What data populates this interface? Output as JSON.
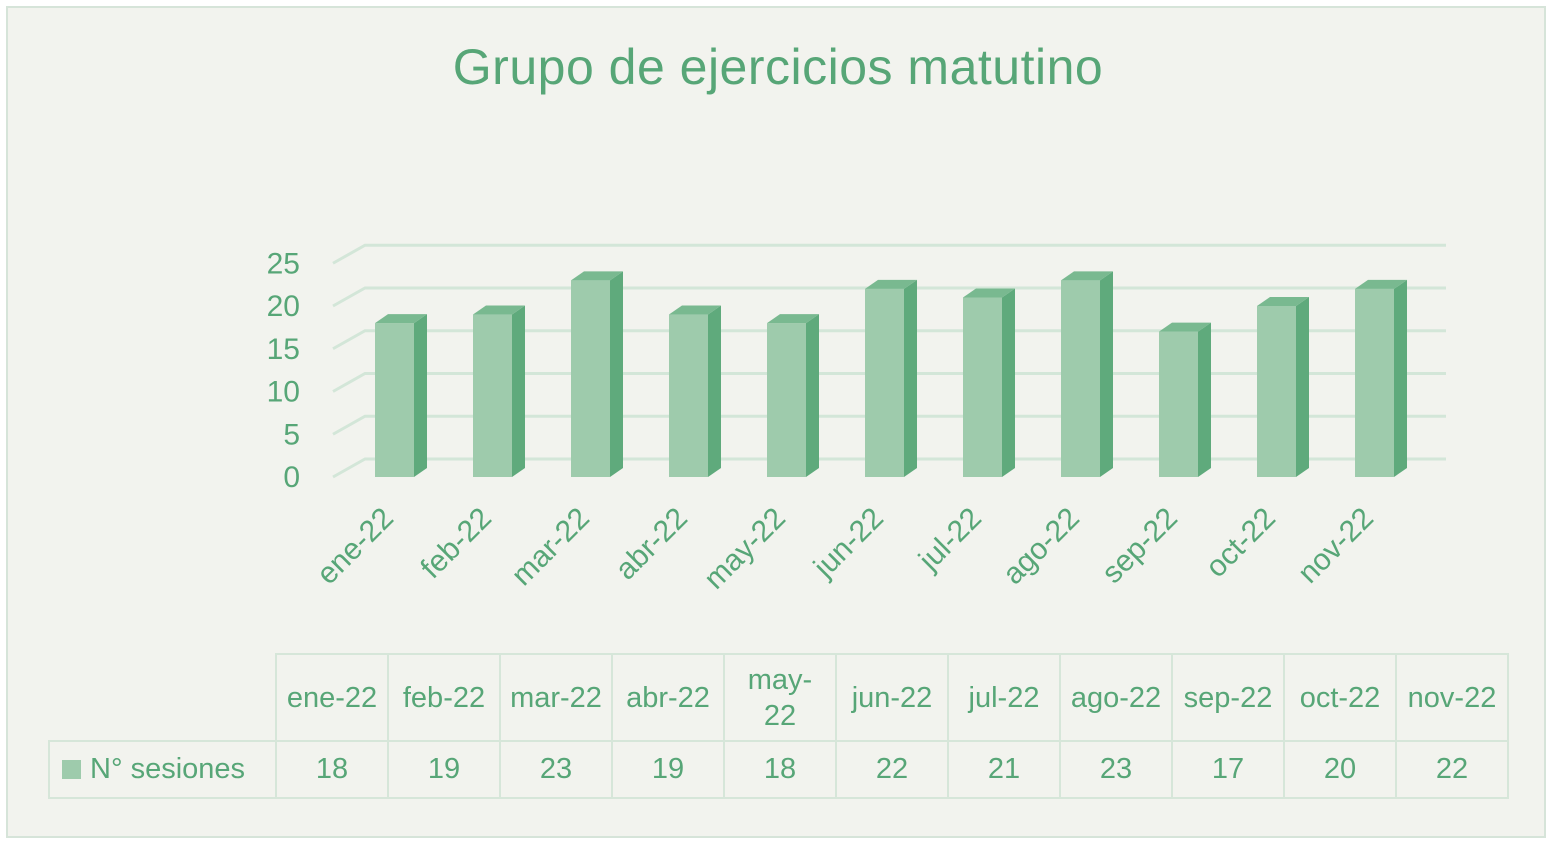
{
  "chart_data": {
    "type": "bar",
    "title": "Grupo de ejercicios matutino",
    "categories": [
      "ene-22",
      "feb-22",
      "mar-22",
      "abr-22",
      "may-22",
      "jun-22",
      "jul-22",
      "ago-22",
      "sep-22",
      "oct-22",
      "nov-22"
    ],
    "series": [
      {
        "name": "N° sesiones",
        "values": [
          18,
          19,
          23,
          19,
          18,
          22,
          21,
          23,
          17,
          20,
          22
        ]
      }
    ],
    "yticks": [
      "0",
      "5",
      "10",
      "15",
      "20",
      "25"
    ],
    "ylim": [
      0,
      25
    ],
    "xlabel": "",
    "ylabel": "",
    "grid": true,
    "legend": "data-table",
    "colors": {
      "bar_front": "#9ecbac",
      "bar_side": "#5faa7c",
      "bar_top": "#79b990",
      "grid": "#d3e6d8",
      "text": "#57a677"
    }
  },
  "table": {
    "header": [
      "ene-22",
      "feb-22",
      "mar-22",
      "abr-22",
      "may-22",
      "jun-22",
      "jul-22",
      "ago-22",
      "sep-22",
      "oct-22",
      "nov-22"
    ],
    "header_lines": {
      "may_1": "may-",
      "may_2": "22"
    },
    "series_label": "N° sesiones",
    "values": [
      "18",
      "19",
      "23",
      "19",
      "18",
      "22",
      "21",
      "23",
      "17",
      "20",
      "22"
    ]
  }
}
